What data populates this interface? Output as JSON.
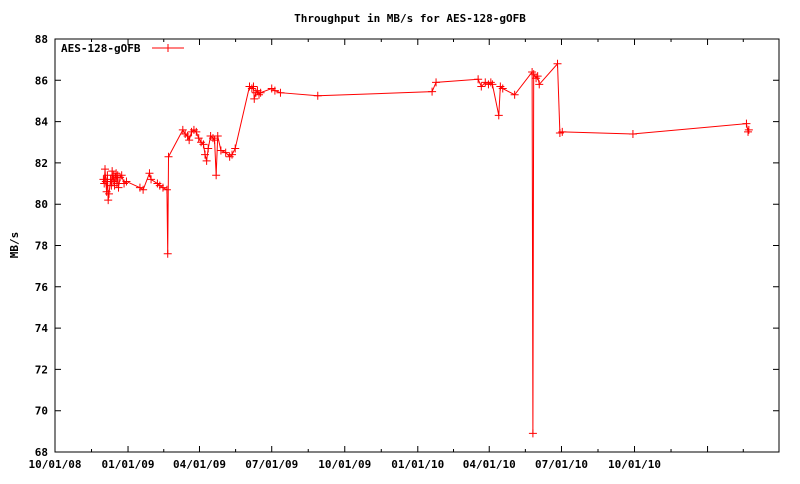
{
  "chart_data": {
    "type": "line",
    "title": "Throughput in MB/s for AES-128-gOFB",
    "xlabel": "",
    "ylabel": "MB/s",
    "xlim": [
      "2008-10-01",
      "2011-04-01"
    ],
    "ylim": [
      68,
      88
    ],
    "yticks": [
      68,
      70,
      72,
      74,
      76,
      78,
      80,
      82,
      84,
      86,
      88
    ],
    "xticks": [
      {
        "date": "2008-10-01",
        "label": "10/01/08"
      },
      {
        "date": "2009-01-01",
        "label": "01/01/09"
      },
      {
        "date": "2009-04-01",
        "label": "04/01/09"
      },
      {
        "date": "2009-07-01",
        "label": "07/01/09"
      },
      {
        "date": "2009-10-01",
        "label": "10/01/09"
      },
      {
        "date": "2010-01-01",
        "label": "01/01/10"
      },
      {
        "date": "2010-04-01",
        "label": "04/01/10"
      },
      {
        "date": "2010-07-01",
        "label": "07/01/10"
      },
      {
        "date": "2010-10-01",
        "label": "10/01/10"
      },
      {
        "date": "2011-01-01",
        "label": ""
      },
      {
        "date": "2011-04-01",
        "label": ""
      }
    ],
    "grid": false,
    "legend_position": "top-left",
    "series": [
      {
        "name": "AES-128-gOFB",
        "color": "#ff0000",
        "marker": "plus",
        "points": [
          [
            "2008-12-01",
            81.2
          ],
          [
            "2008-12-02",
            81.0
          ],
          [
            "2008-12-03",
            81.7
          ],
          [
            "2008-12-04",
            81.1
          ],
          [
            "2008-12-05",
            80.6
          ],
          [
            "2008-12-06",
            81.4
          ],
          [
            "2008-12-07",
            80.2
          ],
          [
            "2008-12-08",
            80.5
          ],
          [
            "2008-12-10",
            81.2
          ],
          [
            "2008-12-11",
            80.9
          ],
          [
            "2008-12-12",
            81.6
          ],
          [
            "2008-12-13",
            81.1
          ],
          [
            "2008-12-14",
            81.4
          ],
          [
            "2008-12-15",
            80.9
          ],
          [
            "2008-12-16",
            81.3
          ],
          [
            "2008-12-17",
            81.5
          ],
          [
            "2008-12-18",
            81.0
          ],
          [
            "2008-12-19",
            81.4
          ],
          [
            "2008-12-20",
            80.8
          ],
          [
            "2008-12-22",
            81.3
          ],
          [
            "2008-12-24",
            81.4
          ],
          [
            "2008-12-27",
            81.0
          ],
          [
            "2008-12-30",
            81.1
          ],
          [
            "2009-01-16",
            80.8
          ],
          [
            "2009-01-20",
            80.7
          ],
          [
            "2009-01-28",
            81.5
          ],
          [
            "2009-01-30",
            81.2
          ],
          [
            "2009-02-07",
            81.0
          ],
          [
            "2009-02-10",
            80.9
          ],
          [
            "2009-02-14",
            80.8
          ],
          [
            "2009-02-19",
            80.7
          ],
          [
            "2009-02-20",
            77.6
          ],
          [
            "2009-02-21",
            82.3
          ],
          [
            "2009-03-11",
            83.6
          ],
          [
            "2009-03-14",
            83.4
          ],
          [
            "2009-03-17",
            83.3
          ],
          [
            "2009-03-19",
            83.1
          ],
          [
            "2009-03-22",
            83.5
          ],
          [
            "2009-03-25",
            83.6
          ],
          [
            "2009-03-28",
            83.5
          ],
          [
            "2009-03-31",
            83.2
          ],
          [
            "2009-04-03",
            83.0
          ],
          [
            "2009-04-06",
            82.9
          ],
          [
            "2009-04-08",
            82.4
          ],
          [
            "2009-04-10",
            82.1
          ],
          [
            "2009-04-12",
            82.7
          ],
          [
            "2009-04-15",
            83.3
          ],
          [
            "2009-04-18",
            83.2
          ],
          [
            "2009-04-20",
            83.1
          ],
          [
            "2009-04-22",
            81.4
          ],
          [
            "2009-04-24",
            83.3
          ],
          [
            "2009-04-28",
            82.6
          ],
          [
            "2009-05-04",
            82.5
          ],
          [
            "2009-05-09",
            82.3
          ],
          [
            "2009-05-12",
            82.4
          ],
          [
            "2009-05-16",
            82.7
          ],
          [
            "2009-06-03",
            85.7
          ],
          [
            "2009-06-06",
            85.6
          ],
          [
            "2009-06-08",
            85.7
          ],
          [
            "2009-06-09",
            85.1
          ],
          [
            "2009-06-11",
            85.4
          ],
          [
            "2009-06-13",
            85.5
          ],
          [
            "2009-06-15",
            85.3
          ],
          [
            "2009-06-17",
            85.4
          ],
          [
            "2009-07-01",
            85.6
          ],
          [
            "2009-07-05",
            85.5
          ],
          [
            "2009-07-12",
            85.4
          ],
          [
            "2009-08-28",
            85.25
          ],
          [
            "2010-01-19",
            85.45
          ],
          [
            "2010-01-24",
            85.9
          ],
          [
            "2010-03-18",
            86.05
          ],
          [
            "2010-03-22",
            85.7
          ],
          [
            "2010-03-27",
            85.9
          ],
          [
            "2010-03-31",
            85.8
          ],
          [
            "2010-04-03",
            85.9
          ],
          [
            "2010-04-05",
            85.8
          ],
          [
            "2010-04-13",
            84.3
          ],
          [
            "2010-04-15",
            85.7
          ],
          [
            "2010-04-18",
            85.6
          ],
          [
            "2010-05-03",
            85.3
          ],
          [
            "2010-05-25",
            86.4
          ],
          [
            "2010-05-26",
            68.9
          ],
          [
            "2010-05-27",
            86.3
          ],
          [
            "2010-05-30",
            86.1
          ],
          [
            "2010-06-01",
            86.2
          ],
          [
            "2010-06-03",
            85.8
          ],
          [
            "2010-06-26",
            86.8
          ],
          [
            "2010-06-29",
            83.45
          ],
          [
            "2010-07-02",
            83.5
          ],
          [
            "2010-09-29",
            83.4
          ],
          [
            "2011-02-19",
            83.9
          ],
          [
            "2011-02-21",
            83.5
          ],
          [
            "2011-02-22",
            83.6
          ]
        ]
      }
    ]
  }
}
